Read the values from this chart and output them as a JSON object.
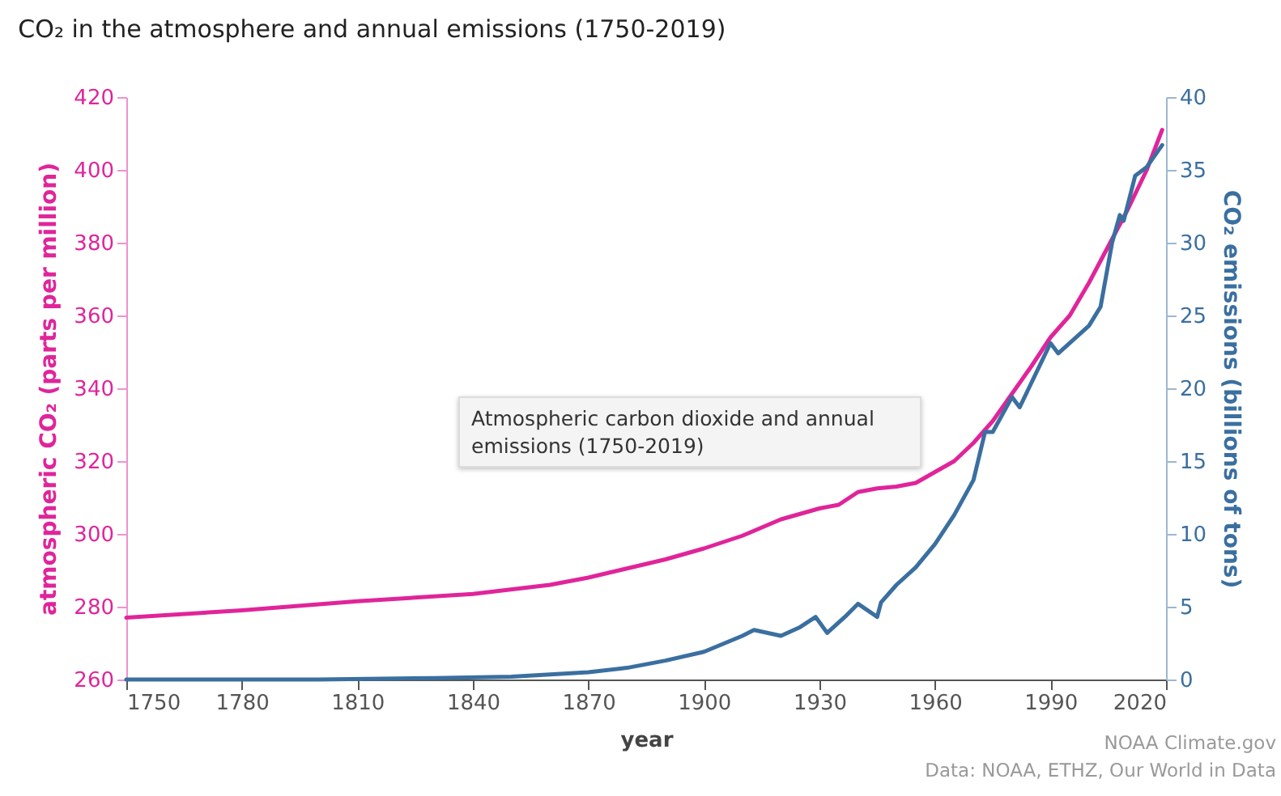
{
  "chart_data": {
    "type": "line",
    "title": "CO₂ in the atmosphere and annual emissions (1750-2019)",
    "xlabel": "year",
    "ylabel": "atmospheric CO₂ (parts per million)",
    "y2label": "CO₂ emissions (billions of tons)",
    "annotations": [
      "Atmospheric carbon dioxide and annual emissions (1750-2019)",
      "NOAA Climate.gov",
      "Data: NOAA, ETHZ, Our World in Data"
    ],
    "xlim": [
      1750,
      2020
    ],
    "xticks": [
      1750,
      1780,
      1810,
      1840,
      1870,
      1900,
      1930,
      1960,
      1990,
      2020
    ],
    "ylim": [
      260,
      420
    ],
    "yticks": [
      260,
      280,
      300,
      320,
      340,
      360,
      380,
      400,
      420
    ],
    "y2lim": [
      0,
      40
    ],
    "y2ticks": [
      0,
      5,
      10,
      15,
      20,
      25,
      30,
      35,
      40
    ],
    "grid": false,
    "line_style": "solid",
    "marker": "none",
    "series": [
      {
        "color": "#e0249a",
        "x": [
          1750,
          1780,
          1810,
          1840,
          1860,
          1870,
          1880,
          1890,
          1900,
          1910,
          1920,
          1930,
          1935,
          1940,
          1945,
          1950,
          1955,
          1960,
          1965,
          1970,
          1975,
          1980,
          1985,
          1990,
          1995,
          2000,
          2005,
          2010,
          2015,
          2019
        ],
        "values": [
          277,
          279,
          281.5,
          283.5,
          286,
          288,
          290.5,
          293,
          296,
          299.5,
          304,
          307,
          308,
          311.5,
          312.5,
          313,
          314,
          317,
          320,
          325,
          331,
          338.5,
          346,
          354,
          360,
          369,
          379,
          389,
          400,
          411
        ]
      },
      {
        "color": "#3a6fa0",
        "axis": "y2",
        "x": [
          1750,
          1800,
          1830,
          1850,
          1870,
          1880,
          1890,
          1900,
          1910,
          1913,
          1920,
          1925,
          1929,
          1932,
          1937,
          1940,
          1945,
          1946,
          1950,
          1955,
          1960,
          1965,
          1970,
          1973,
          1975,
          1980,
          1982,
          1990,
          1992,
          2000,
          2003,
          2006,
          2008,
          2009,
          2012,
          2015,
          2019
        ],
        "values": [
          0,
          0,
          0.1,
          0.2,
          0.5,
          0.8,
          1.3,
          1.9,
          3.0,
          3.4,
          3.0,
          3.6,
          4.3,
          3.2,
          4.4,
          5.2,
          4.3,
          5.3,
          6.5,
          7.7,
          9.3,
          11.3,
          13.7,
          17.0,
          17.0,
          19.4,
          18.7,
          23.1,
          22.4,
          24.3,
          25.6,
          30.0,
          31.9,
          31.5,
          34.6,
          35.2,
          36.7
        ]
      }
    ]
  }
}
